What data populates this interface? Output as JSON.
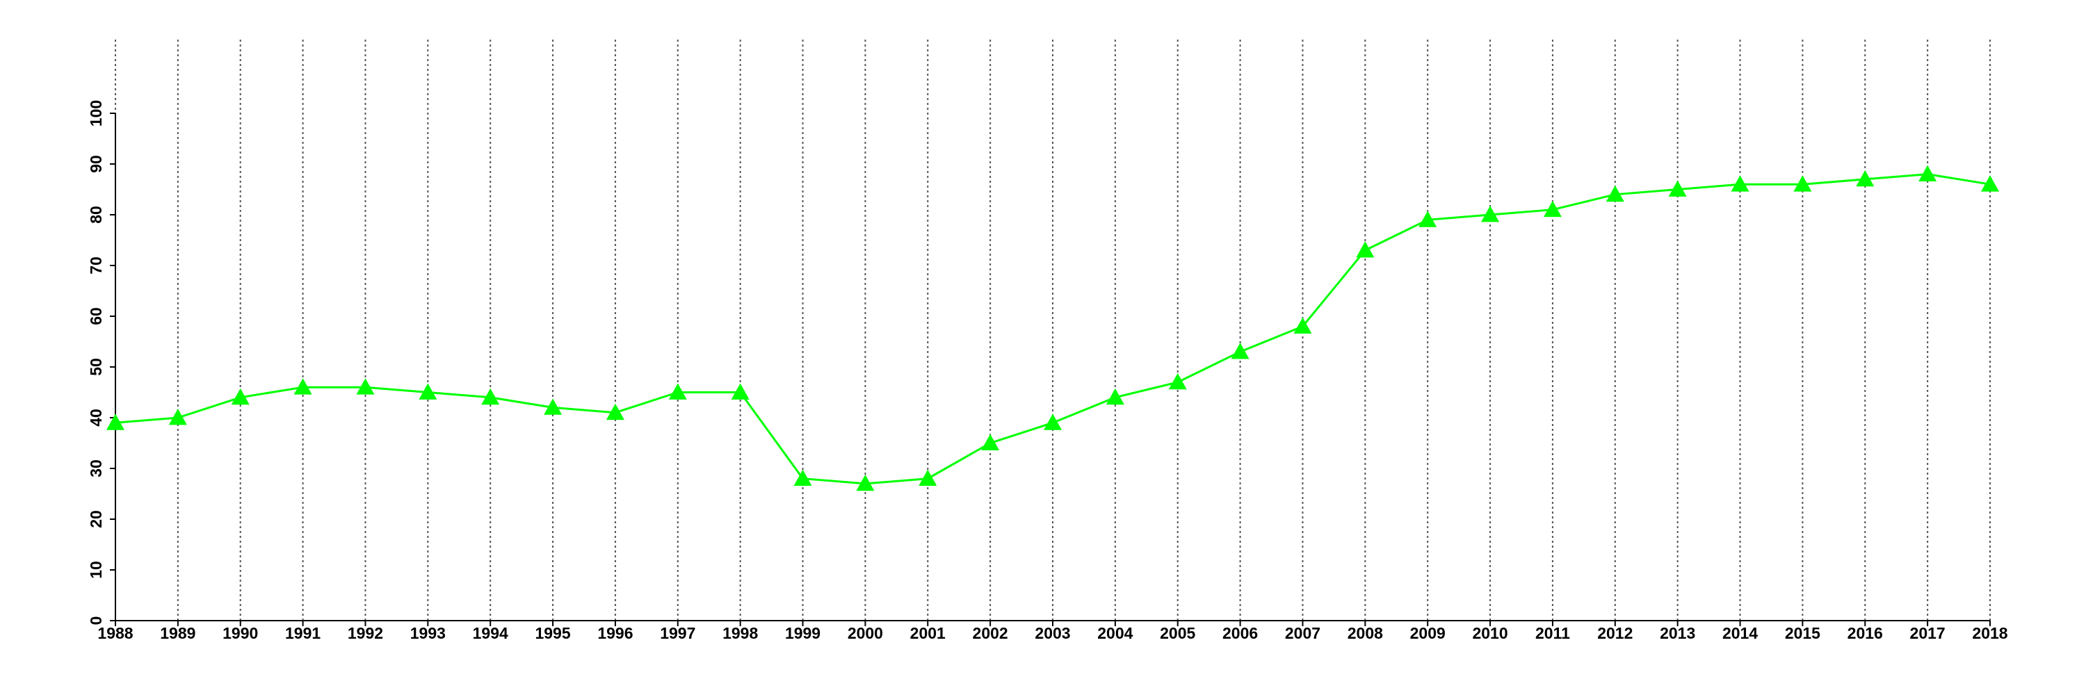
{
  "chart_data": {
    "type": "line",
    "x": [
      1988,
      1989,
      1990,
      1991,
      1992,
      1993,
      1994,
      1995,
      1996,
      1997,
      1998,
      1999,
      2000,
      2001,
      2002,
      2003,
      2004,
      2005,
      2006,
      2007,
      2008,
      2009,
      2010,
      2011,
      2012,
      2013,
      2014,
      2015,
      2016,
      2017,
      2018
    ],
    "values": [
      39,
      40,
      44,
      46,
      46,
      45,
      44,
      42,
      41,
      45,
      45,
      28,
      27,
      28,
      35,
      39,
      44,
      47,
      53,
      58,
      73,
      79,
      80,
      81,
      84,
      85,
      86,
      86,
      87,
      88,
      86
    ],
    "color": "#00ff00",
    "xlim": [
      1988,
      2018
    ],
    "xticks": [
      1988,
      1989,
      1990,
      1991,
      1992,
      1993,
      1994,
      1995,
      1996,
      1997,
      1998,
      1999,
      2000,
      2001,
      2002,
      2003,
      2004,
      2005,
      2006,
      2007,
      2008,
      2009,
      2010,
      2011,
      2012,
      2013,
      2014,
      2015,
      2016,
      2017,
      2018
    ],
    "ylim": [
      0,
      100
    ],
    "yticks": [
      0,
      10,
      20,
      30,
      40,
      50,
      60,
      70,
      80,
      90,
      100
    ],
    "grid": true
  }
}
